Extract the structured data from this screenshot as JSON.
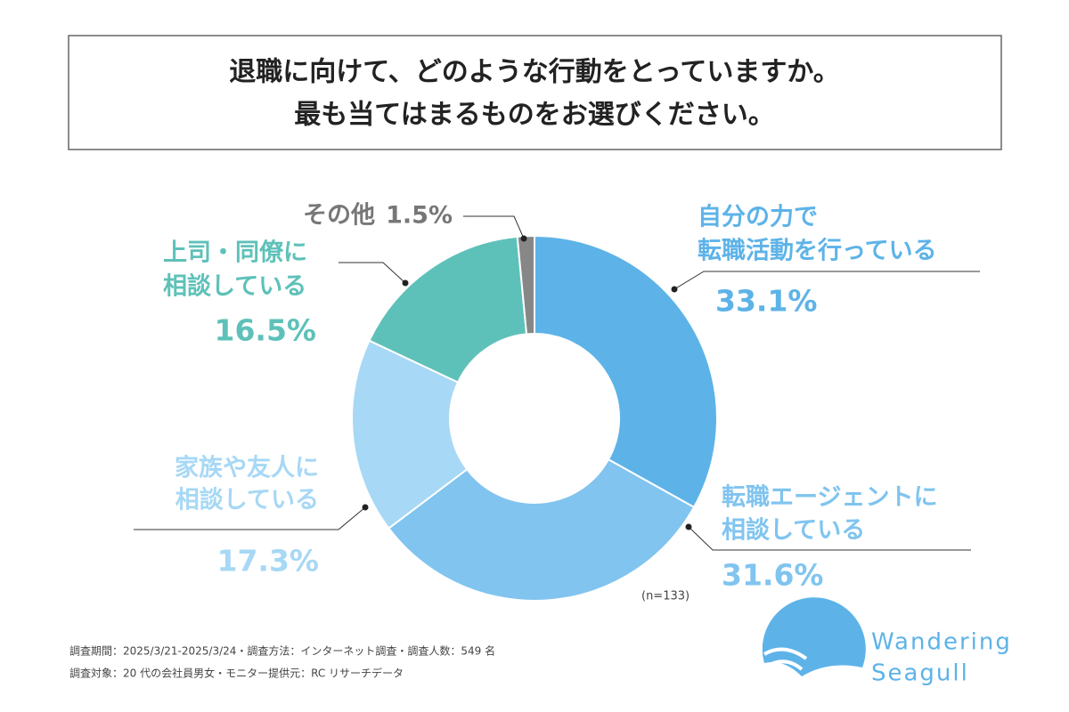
{
  "chart_data": {
    "type": "donut",
    "title": [
      "退職に向けて、どのような行動をとっていますか。",
      "最も当てはまるものをお選びください。"
    ],
    "categories": [
      [
        "自分の力で",
        "転職活動を行っている"
      ],
      [
        "転職エージェントに",
        "相談している"
      ],
      [
        "家族や友人に",
        "相談している"
      ],
      [
        "上司・同僚に",
        "相談している"
      ],
      [
        "その他"
      ]
    ],
    "values": [
      33.1,
      31.6,
      17.3,
      16.5,
      1.5
    ],
    "value_labels": [
      "33.1%",
      "31.6%",
      "17.3%",
      "16.5%",
      "1.5%"
    ],
    "colors": [
      "#5db3e8",
      "#80c4ef",
      "#a7d8f5",
      "#5ec1b9",
      "#878787"
    ],
    "note": "(n=133)",
    "footnotes": [
      "調査期間：2025/3/21-2025/3/24・調査方法：インターネット調査・調査人数：549 名",
      "調査対象：20 代の会社員男女・モニター提供元：RC リサーチデータ"
    ],
    "logo": [
      "Wandering",
      "Seagull"
    ]
  }
}
